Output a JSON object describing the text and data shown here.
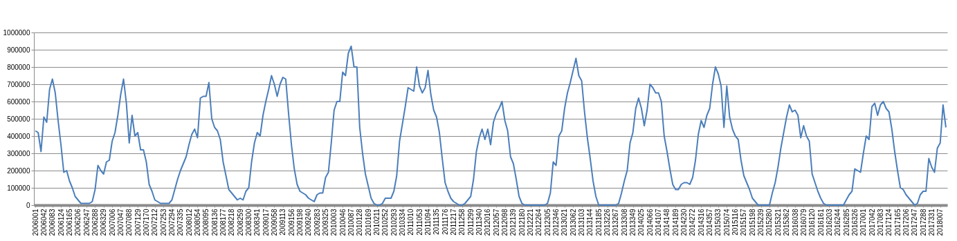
{
  "chart_data": {
    "type": "line",
    "color": "#4a7ebb",
    "grid": "y",
    "ylim": [
      0,
      1000000
    ],
    "yticks": [
      0,
      100000,
      200000,
      300000,
      400000,
      500000,
      600000,
      700000,
      800000,
      900000,
      1000000
    ],
    "categories": [
      "2006001",
      null,
      null,
      "2006042",
      null,
      null,
      "2006083",
      null,
      null,
      "2006124",
      null,
      null,
      "2006165",
      null,
      null,
      "2006206",
      null,
      null,
      "2006247",
      null,
      null,
      "2006288",
      null,
      null,
      "2006329",
      null,
      null,
      "2007006",
      null,
      null,
      "2007047",
      null,
      null,
      "2007088",
      null,
      null,
      "2007129",
      null,
      null,
      "2007170",
      null,
      null,
      "2007212",
      null,
      null,
      "2007253",
      null,
      null,
      "2007294",
      null,
      null,
      "2007335",
      null,
      null,
      "2008012",
      null,
      null,
      "2008054",
      null,
      null,
      "2008095",
      null,
      null,
      "2008136",
      null,
      null,
      "2008177",
      null,
      null,
      "2008218",
      null,
      null,
      "2008259",
      null,
      null,
      "2008300",
      null,
      null,
      "2008341",
      null,
      null,
      "2009017",
      null,
      null,
      "2009058",
      null,
      null,
      "2009113",
      null,
      null,
      "2009156",
      null,
      null,
      "2009198",
      null,
      null,
      "2009240",
      null,
      null,
      "2009283",
      null,
      null,
      "2009325",
      null,
      null,
      "2010003",
      null,
      null,
      "2010046",
      null,
      null,
      "2010087",
      null,
      null,
      "2010128",
      null,
      null,
      "2010169",
      null,
      null,
      "2010211",
      null,
      null,
      "2010252",
      null,
      null,
      "2010293",
      null,
      null,
      "2010334",
      null,
      null,
      "2011010",
      null,
      null,
      "2011053",
      null,
      null,
      "2011094",
      null,
      null,
      "2011135",
      null,
      null,
      "2011176",
      null,
      null,
      "2011217",
      null,
      null,
      "2011258",
      null,
      null,
      "2011299",
      null,
      null,
      "2011340",
      null,
      null,
      "2012016",
      null,
      null,
      "2012057",
      null,
      null,
      "2012098",
      null,
      null,
      "2012139",
      null,
      null,
      "2012180",
      null,
      null,
      "2012221",
      null,
      null,
      "2012264",
      null,
      null,
      "2012305",
      null,
      null,
      "2012346",
      null,
      null,
      "2013021",
      null,
      null,
      "2013062",
      null,
      null,
      "2013103",
      null,
      null,
      "2013144",
      null,
      null,
      "2013185",
      null,
      null,
      "2013226",
      null,
      null,
      "2013267",
      null,
      null,
      "2013308",
      null,
      null,
      "2013349",
      null,
      null,
      "2014025",
      null,
      null,
      "2014066",
      null,
      null,
      "2014107",
      null,
      null,
      "2014148",
      null,
      null,
      "2014189",
      null,
      null,
      "2014230",
      null,
      null,
      "2014272",
      null,
      null,
      "2014316",
      null,
      null,
      "2014357",
      null,
      null,
      "2015033",
      null,
      null,
      "2015074",
      null,
      null,
      "2015116",
      null,
      null,
      "2015157",
      null,
      null,
      "2015198",
      null,
      null,
      "2015239",
      null,
      null,
      "2015280",
      null,
      null,
      "2015321",
      null,
      null,
      "2015362",
      null,
      null,
      "2016038",
      null,
      null,
      "2016079",
      null,
      null,
      "2016120",
      null,
      null,
      "2016161",
      null,
      null,
      "2016203",
      null,
      null,
      "2016244",
      null,
      null,
      "2016285",
      null,
      null,
      "2016326",
      null,
      null,
      "2017001",
      null,
      null,
      "2017042",
      null,
      null,
      "2017083",
      null,
      null,
      "2017124",
      null,
      null,
      "2017165",
      null,
      null,
      "2017206",
      null,
      null,
      "2017247",
      null,
      null,
      "2017288",
      null,
      null,
      "2017331",
      null,
      null,
      "2018007",
      null,
      null
    ],
    "values": [
      430000,
      420000,
      310000,
      510000,
      480000,
      670000,
      730000,
      650000,
      490000,
      350000,
      190000,
      200000,
      140000,
      100000,
      50000,
      30000,
      10000,
      10000,
      10000,
      10000,
      20000,
      90000,
      230000,
      200000,
      180000,
      250000,
      260000,
      370000,
      420000,
      520000,
      640000,
      730000,
      590000,
      360000,
      520000,
      400000,
      420000,
      320000,
      320000,
      250000,
      120000,
      80000,
      30000,
      20000,
      10000,
      10000,
      10000,
      10000,
      30000,
      90000,
      150000,
      200000,
      240000,
      280000,
      350000,
      410000,
      440000,
      390000,
      620000,
      630000,
      630000,
      710000,
      500000,
      450000,
      430000,
      380000,
      250000,
      170000,
      90000,
      70000,
      50000,
      30000,
      40000,
      30000,
      80000,
      100000,
      250000,
      360000,
      420000,
      400000,
      520000,
      600000,
      670000,
      750000,
      700000,
      630000,
      700000,
      740000,
      730000,
      530000,
      350000,
      210000,
      120000,
      80000,
      70000,
      60000,
      40000,
      30000,
      20000,
      60000,
      70000,
      70000,
      160000,
      190000,
      360000,
      550000,
      600000,
      600000,
      770000,
      750000,
      880000,
      920000,
      800000,
      800000,
      450000,
      300000,
      180000,
      110000,
      40000,
      10000,
      0,
      0,
      10000,
      40000,
      40000,
      40000,
      80000,
      170000,
      370000,
      470000,
      570000,
      680000,
      670000,
      660000,
      800000,
      690000,
      650000,
      680000,
      780000,
      640000,
      550000,
      510000,
      420000,
      270000,
      130000,
      80000,
      40000,
      20000,
      10000,
      0,
      0,
      10000,
      30000,
      50000,
      150000,
      310000,
      390000,
      440000,
      380000,
      440000,
      350000,
      480000,
      530000,
      560000,
      600000,
      490000,
      430000,
      280000,
      240000,
      150000,
      50000,
      10000,
      0,
      0,
      0,
      0,
      0,
      0,
      0,
      0,
      10000,
      70000,
      250000,
      230000,
      400000,
      430000,
      560000,
      650000,
      710000,
      780000,
      850000,
      750000,
      720000,
      540000,
      390000,
      270000,
      140000,
      50000,
      0,
      0,
      0,
      0,
      0,
      0,
      0,
      10000,
      70000,
      140000,
      200000,
      360000,
      420000,
      560000,
      620000,
      560000,
      460000,
      550000,
      700000,
      680000,
      650000,
      650000,
      600000,
      400000,
      310000,
      210000,
      120000,
      90000,
      90000,
      120000,
      130000,
      130000,
      120000,
      160000,
      260000,
      410000,
      490000,
      450000,
      520000,
      560000,
      700000,
      800000,
      760000,
      690000,
      450000,
      690000,
      510000,
      440000,
      400000,
      380000,
      260000,
      170000,
      130000,
      90000,
      40000,
      20000,
      0,
      0,
      0,
      0,
      0,
      70000,
      130000,
      220000,
      330000,
      420000,
      510000,
      580000,
      540000,
      550000,
      520000,
      390000,
      460000,
      400000,
      370000,
      180000,
      130000,
      80000,
      40000,
      10000,
      0,
      0,
      0,
      0,
      0,
      0,
      0,
      30000,
      60000,
      80000,
      210000,
      200000,
      190000,
      300000,
      400000,
      380000,
      570000,
      590000,
      520000,
      580000,
      600000,
      560000,
      540000,
      440000,
      310000,
      200000,
      100000,
      90000,
      60000,
      40000,
      20000,
      0,
      10000,
      60000,
      80000,
      80000,
      270000,
      220000,
      190000,
      330000,
      360000,
      580000,
      450000
    ]
  }
}
